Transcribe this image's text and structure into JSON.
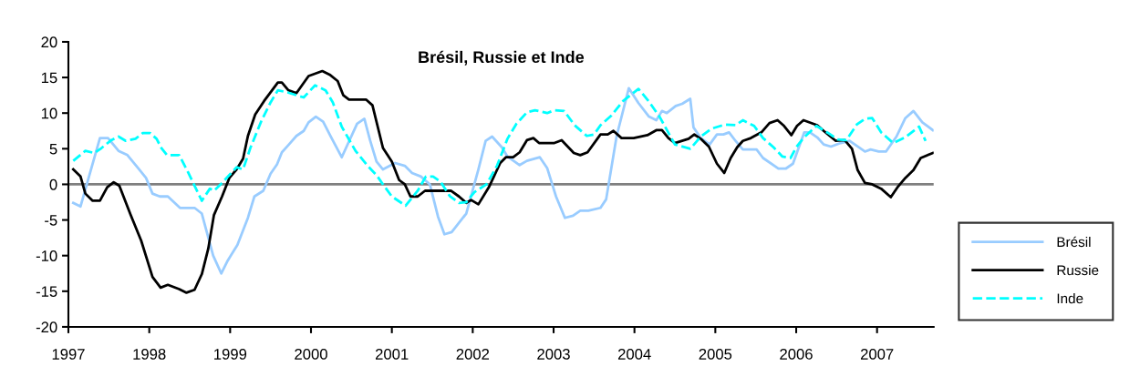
{
  "chart_data": {
    "type": "line",
    "title": "Brésil, Russie et Inde",
    "xlim": [
      1997,
      2007.7
    ],
    "xticks": [
      1997,
      1998,
      1999,
      2000,
      2001,
      2002,
      2003,
      2004,
      2005,
      2006,
      2007
    ],
    "ylim": [
      -20,
      20
    ],
    "yticks": [
      -20,
      -15,
      -10,
      -5,
      0,
      5,
      10,
      15,
      20
    ],
    "grid": false,
    "legend": "right",
    "marker": "none",
    "ref_lines": [
      {
        "axis": "y",
        "value": 0,
        "color": "#808080",
        "line_style": "solid"
      }
    ],
    "series": [
      {
        "name": "Brésil",
        "color": "#99ccff",
        "line_style": "solid",
        "x": [
          1997.06,
          1997.15,
          1997.39,
          1997.49,
          1997.62,
          1997.73,
          1997.86,
          1997.96,
          1998.04,
          1998.13,
          1998.23,
          1998.38,
          1998.56,
          1998.65,
          1998.79,
          1998.89,
          1998.97,
          1999.09,
          1999.22,
          1999.3,
          1999.41,
          1999.5,
          1999.58,
          1999.64,
          1999.72,
          1999.82,
          1999.91,
          1999.97,
          2000.06,
          2000.15,
          2000.25,
          2000.38,
          2000.57,
          2000.66,
          2000.73,
          2000.81,
          2000.89,
          2001.04,
          2001.16,
          2001.25,
          2001.36,
          2001.47,
          2001.57,
          2001.65,
          2001.74,
          2001.92,
          2002.07,
          2002.16,
          2002.24,
          2002.36,
          2002.43,
          2002.58,
          2002.67,
          2002.83,
          2002.92,
          2003.03,
          2003.14,
          2003.24,
          2003.33,
          2003.43,
          2003.58,
          2003.65,
          2003.78,
          2003.93,
          2004.05,
          2004.18,
          2004.27,
          2004.34,
          2004.4,
          2004.51,
          2004.59,
          2004.69,
          2004.73,
          2004.82,
          2004.93,
          2005.02,
          2005.1,
          2005.17,
          2005.25,
          2005.34,
          2005.51,
          2005.59,
          2005.78,
          2005.87,
          2005.96,
          2006.1,
          2006.17,
          2006.26,
          2006.34,
          2006.43,
          2006.55,
          2006.66,
          2006.85,
          2006.92,
          2007.02,
          2007.11,
          2007.24,
          2007.35,
          2007.45,
          2007.56,
          2007.69
        ],
        "values": [
          -2.6,
          -3.1,
          6.5,
          6.5,
          4.7,
          4.1,
          2.3,
          0.9,
          -1.3,
          -1.7,
          -1.7,
          -3.3,
          -3.3,
          -4.1,
          -10,
          -12.5,
          -10.7,
          -8.5,
          -4.7,
          -1.7,
          -0.9,
          1.5,
          2.8,
          4.5,
          5.5,
          6.8,
          7.5,
          8.7,
          9.5,
          8.8,
          6.6,
          3.8,
          8.5,
          9.2,
          6.2,
          3.2,
          2.1,
          3,
          2.6,
          1.6,
          1.1,
          0,
          -4.5,
          -7,
          -6.7,
          -4.1,
          2.1,
          6.1,
          6.7,
          5.2,
          3.9,
          2.7,
          3.3,
          3.8,
          2.3,
          -1.7,
          -4.7,
          -4.4,
          -3.7,
          -3.7,
          -3.3,
          -2.1,
          6.8,
          13.5,
          11.4,
          9.5,
          9,
          10.3,
          10,
          11,
          11.3,
          12,
          8,
          6.5,
          5.6,
          7,
          7,
          7.3,
          6.1,
          4.9,
          4.9,
          3.7,
          2.2,
          2.2,
          2.9,
          7.3,
          7.3,
          6.6,
          5.6,
          5.3,
          5.8,
          6.1,
          4.6,
          4.9,
          4.6,
          4.6,
          6.7,
          9.3,
          10.3,
          8.7,
          7.6
        ]
      },
      {
        "name": "Russie",
        "color": "#000000",
        "line_style": "solid",
        "x": [
          1997.06,
          1997.15,
          1997.21,
          1997.3,
          1997.39,
          1997.48,
          1997.56,
          1997.63,
          1997.77,
          1997.9,
          1998.04,
          1998.14,
          1998.23,
          1998.37,
          1998.46,
          1998.56,
          1998.65,
          1998.73,
          1998.8,
          1998.9,
          1998.99,
          1999.08,
          1999.16,
          1999.22,
          1999.31,
          1999.42,
          1999.59,
          1999.64,
          1999.72,
          1999.82,
          1999.97,
          2000.14,
          2000.23,
          2000.33,
          2000.4,
          2000.47,
          2000.68,
          2000.76,
          2000.89,
          2001.0,
          2001.09,
          2001.16,
          2001.23,
          2001.32,
          2001.41,
          2001.73,
          2001.83,
          2001.92,
          2001.98,
          2002.07,
          2002.2,
          2002.34,
          2002.41,
          2002.5,
          2002.58,
          2002.67,
          2002.75,
          2002.82,
          2003.01,
          2003.1,
          2003.25,
          2003.33,
          2003.42,
          2003.58,
          2003.67,
          2003.74,
          2003.84,
          2003.99,
          2004.16,
          2004.27,
          2004.34,
          2004.42,
          2004.5,
          2004.67,
          2004.74,
          2004.83,
          2004.92,
          2005.02,
          2005.11,
          2005.19,
          2005.27,
          2005.34,
          2005.44,
          2005.57,
          2005.67,
          2005.77,
          2005.85,
          2005.94,
          2006.01,
          2006.09,
          2006.26,
          2006.34,
          2006.49,
          2006.6,
          2006.69,
          2006.76,
          2006.85,
          2006.94,
          2007.05,
          2007.17,
          2007.26,
          2007.35,
          2007.45,
          2007.54,
          2007.69
        ],
        "values": [
          2.1,
          1.1,
          -1.3,
          -2.3,
          -2.3,
          -0.4,
          0.3,
          -0.2,
          -4.3,
          -7.9,
          -13,
          -14.5,
          -14.1,
          -14.7,
          -15.2,
          -14.8,
          -12.6,
          -9,
          -4.3,
          -1.7,
          0.9,
          2.1,
          3.6,
          6.8,
          9.8,
          11.7,
          14.3,
          14.3,
          13.2,
          12.8,
          15.2,
          15.9,
          15.4,
          14.5,
          12.5,
          11.9,
          11.9,
          11.1,
          5.1,
          3.2,
          0.6,
          0,
          -1.7,
          -1.7,
          -0.9,
          -0.9,
          -1.7,
          -2.6,
          -2.2,
          -2.8,
          -0.4,
          3,
          3.8,
          3.8,
          4.5,
          6.2,
          6.5,
          5.8,
          5.8,
          6.2,
          4.4,
          4.1,
          4.5,
          7,
          7,
          7.5,
          6.5,
          6.5,
          6.9,
          7.6,
          7.6,
          6.5,
          5.8,
          6.4,
          7,
          6.3,
          5.3,
          2.9,
          1.6,
          3.7,
          5.2,
          6.1,
          6.5,
          7.3,
          8.6,
          9,
          8.2,
          6.9,
          8.2,
          9,
          8.3,
          7.5,
          6.1,
          6.2,
          5,
          2,
          0.2,
          0,
          -0.6,
          -1.8,
          -0.3,
          0.9,
          2,
          3.7,
          4.4
        ]
      },
      {
        "name": "Inde",
        "color": "#00ffff",
        "line_style": "dashed",
        "x": [
          1997.06,
          1997.21,
          1997.32,
          1997.41,
          1997.53,
          1997.62,
          1997.71,
          1997.83,
          1997.92,
          1998.01,
          1998.09,
          1998.15,
          1998.22,
          1998.37,
          1998.48,
          1998.65,
          1998.75,
          1998.8,
          1998.9,
          1998.99,
          1999.08,
          1999.16,
          1999.25,
          1999.39,
          1999.5,
          1999.59,
          1999.71,
          1999.91,
          2000.05,
          2000.18,
          2000.27,
          2000.38,
          2000.55,
          2000.7,
          2000.81,
          2000.89,
          2001.0,
          2001.17,
          2001.32,
          2001.42,
          2001.51,
          2001.6,
          2001.72,
          2001.83,
          2001.92,
          2002.02,
          2002.17,
          2002.3,
          2002.43,
          2002.54,
          2002.67,
          2002.77,
          2002.92,
          2003.01,
          2003.13,
          2003.26,
          2003.41,
          2003.5,
          2003.58,
          2003.71,
          2003.86,
          2004.05,
          2004.18,
          2004.31,
          2004.5,
          2004.69,
          2004.82,
          2004.95,
          2005.12,
          2005.25,
          2005.34,
          2005.48,
          2005.59,
          2005.72,
          2005.83,
          2005.93,
          2006.0,
          2006.09,
          2006.25,
          2006.41,
          2006.51,
          2006.62,
          2006.75,
          2006.85,
          2006.94,
          2007.05,
          2007.2,
          2007.35,
          2007.52,
          2007.6
        ],
        "values": [
          3.3,
          4.7,
          4.4,
          5.1,
          6.2,
          6.7,
          6.1,
          6.4,
          7.2,
          7.2,
          6.4,
          5.1,
          4.1,
          4.1,
          1.7,
          -2.3,
          -0.6,
          -0.9,
          0.2,
          1.3,
          2.4,
          2.1,
          5.1,
          9,
          11.5,
          13.2,
          12.9,
          12.2,
          13.9,
          13.2,
          11.5,
          8.1,
          4.7,
          2.6,
          1.3,
          0,
          -1.7,
          -3,
          -0.9,
          1.1,
          1.1,
          0.4,
          -1.7,
          -2.6,
          -2.5,
          -1.1,
          0,
          2.6,
          6.4,
          8.5,
          10.1,
          10.4,
          10,
          10.4,
          10.3,
          8.3,
          6.8,
          7,
          8.3,
          9.6,
          11.7,
          13.4,
          11.6,
          9.5,
          5.6,
          5,
          6.7,
          7.8,
          8.4,
          8.3,
          9,
          8.2,
          6.5,
          5.2,
          3.9,
          3.7,
          5.2,
          6.5,
          8.2,
          7.1,
          6.3,
          6.2,
          8.4,
          9.2,
          9.3,
          7.3,
          5.8,
          6.6,
          8.1,
          6.1
        ]
      }
    ]
  }
}
